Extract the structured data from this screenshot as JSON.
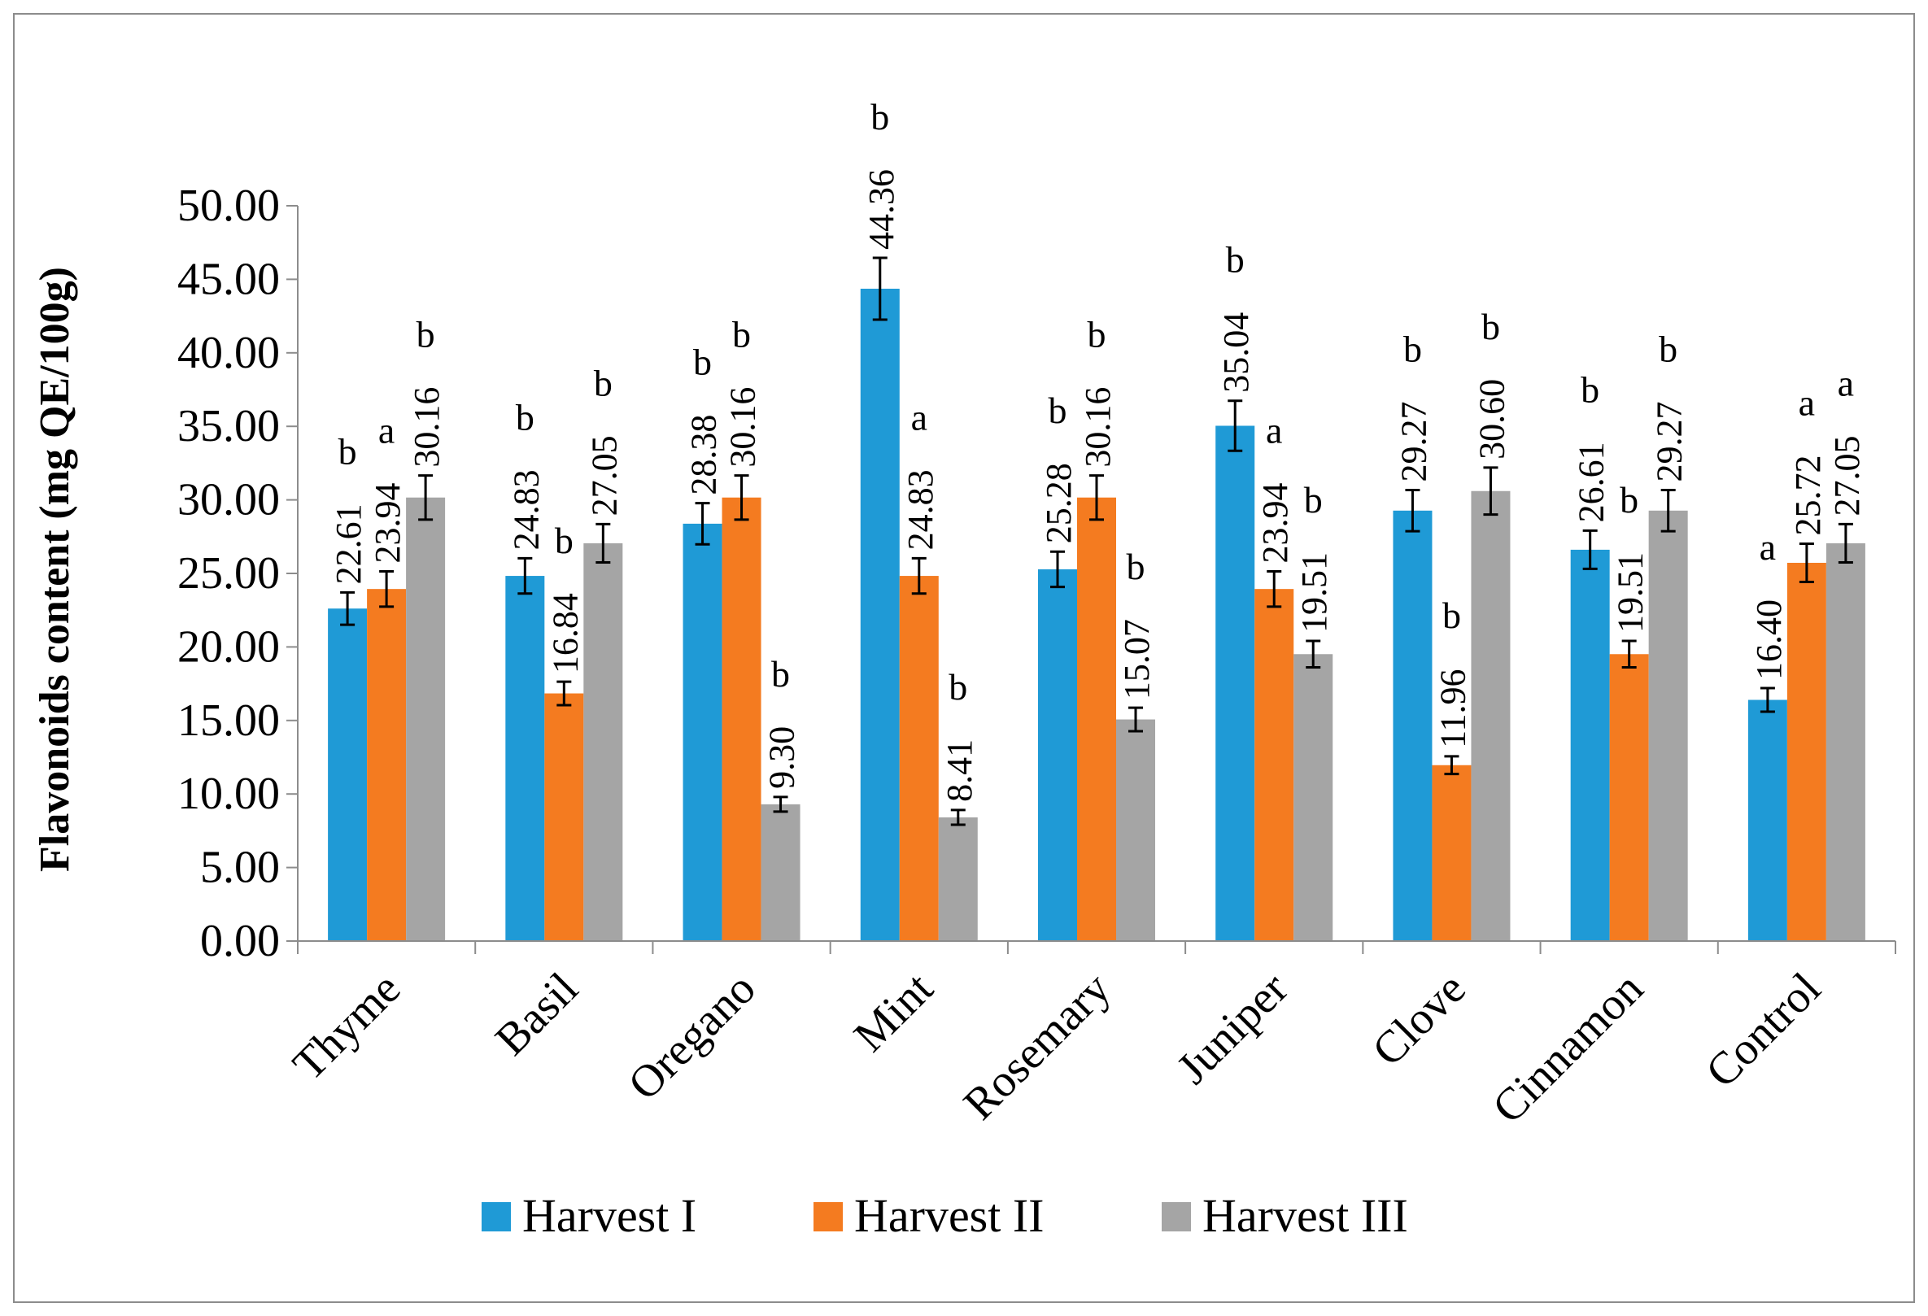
{
  "chart_data": {
    "type": "bar",
    "title": "",
    "xlabel": "",
    "ylabel": "Flavonoids content (mg QE/100g)",
    "ylim": [
      0,
      50
    ],
    "ytick_labels": [
      "0.00",
      "5.00",
      "10.00",
      "15.00",
      "20.00",
      "25.00",
      "30.00",
      "35.00",
      "40.00",
      "45.00",
      "50.00"
    ],
    "categories": [
      "Thyme",
      "Basil",
      "Oregano",
      "Mint",
      "Rosemary",
      "Juniper",
      "Clove",
      "Cinnamon",
      "Control"
    ],
    "legend_position": "bottom",
    "series": [
      {
        "name": "Harvest I",
        "color": "#1f9ad6",
        "values": [
          22.61,
          24.83,
          28.38,
          44.36,
          25.28,
          35.04,
          29.27,
          26.61,
          16.4
        ],
        "labels": [
          "22.61",
          "24.83",
          "28.38",
          "44.36",
          "25.28",
          "35.04",
          "29.27",
          "26.61",
          "16.40"
        ],
        "errors": [
          1.1,
          1.2,
          1.4,
          2.1,
          1.2,
          1.7,
          1.4,
          1.3,
          0.8
        ],
        "letters": [
          "b",
          "b",
          "b",
          "b",
          "b",
          "b",
          "b",
          "b",
          "a"
        ]
      },
      {
        "name": "Harvest II",
        "color": "#f47b20",
        "values": [
          23.94,
          16.84,
          30.16,
          24.83,
          30.16,
          23.94,
          11.96,
          19.51,
          25.72
        ],
        "labels": [
          "23.94",
          "16.84",
          "30.16",
          "24.83",
          "30.16",
          "23.94",
          "11.96",
          "19.51",
          "25.72"
        ],
        "errors": [
          1.2,
          0.8,
          1.5,
          1.2,
          1.5,
          1.2,
          0.6,
          0.9,
          1.3
        ],
        "letters": [
          "a",
          "b",
          "b",
          "a",
          "b",
          "a",
          "b",
          "b",
          "a"
        ]
      },
      {
        "name": "Harvest III",
        "color": "#a5a5a5",
        "values": [
          30.16,
          27.05,
          9.3,
          8.41,
          15.07,
          19.51,
          30.6,
          29.27,
          27.05
        ],
        "labels": [
          "30.16",
          "27.05",
          "9.30",
          "8.41",
          "15.07",
          "19.51",
          "30.60",
          "29.27",
          "27.05"
        ],
        "errors": [
          1.5,
          1.3,
          0.5,
          0.5,
          0.8,
          0.9,
          1.6,
          1.4,
          1.3
        ],
        "letters": [
          "b",
          "b",
          "b",
          "b",
          "b",
          "b",
          "b",
          "b",
          "a"
        ]
      }
    ]
  }
}
